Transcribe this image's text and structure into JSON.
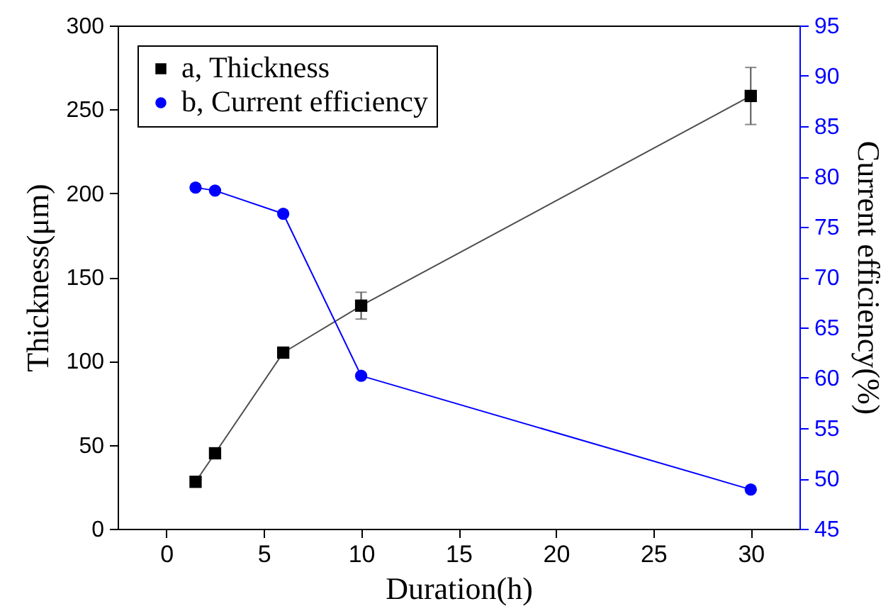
{
  "chart_data": {
    "type": "line",
    "xlabel": "Duration(h)",
    "ylabel": "Thickness(μm)",
    "y2label": "Current efficiency(%)",
    "x": [
      1.5,
      2.5,
      6,
      10,
      30
    ],
    "xlim": [
      -2.5,
      32.5
    ],
    "xticks": [
      0,
      5,
      10,
      15,
      20,
      25,
      30
    ],
    "ylim": [
      0,
      300
    ],
    "yticks": [
      0,
      50,
      100,
      150,
      200,
      250,
      300
    ],
    "y2lim": [
      45,
      95
    ],
    "y2ticks": [
      45,
      50,
      55,
      60,
      65,
      70,
      75,
      80,
      85,
      90,
      95
    ],
    "grid": false,
    "legend": "top left",
    "series": [
      {
        "name": "a, Thickness",
        "color": "#000000",
        "marker": "square",
        "values": [
          28,
          45,
          105,
          133,
          258
        ],
        "errors": [
          null,
          null,
          3,
          8,
          17
        ]
      },
      {
        "name": "b, Current efficiency",
        "color": "#0000ff",
        "marker": "circle",
        "axis": "y2",
        "values": [
          78.9,
          78.6,
          76.3,
          60.2,
          48.9
        ]
      }
    ]
  }
}
